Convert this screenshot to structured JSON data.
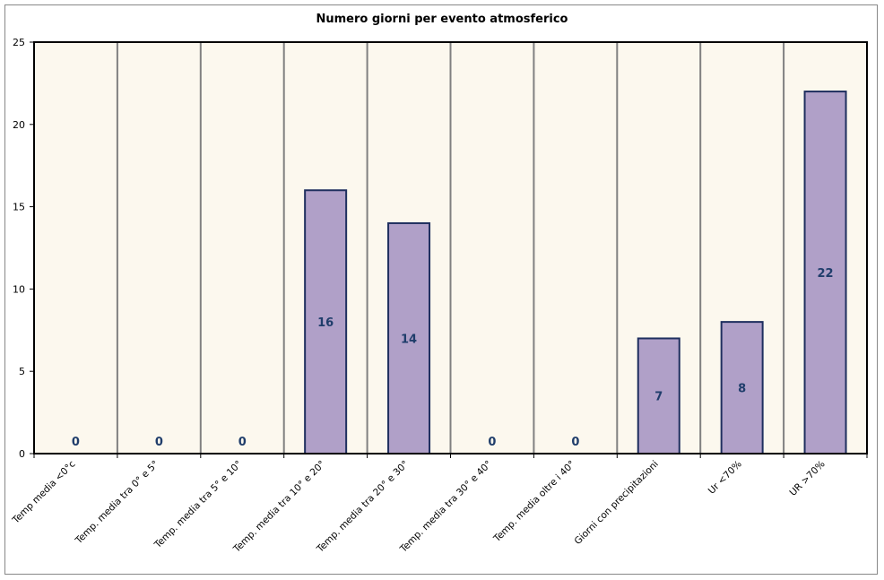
{
  "chart_data": {
    "type": "bar",
    "title": "Numero giorni per evento atmosferico",
    "xlabel": "",
    "ylabel": "",
    "ylim": [
      0,
      25
    ],
    "yticks": [
      0,
      5,
      10,
      15,
      20,
      25
    ],
    "categories": [
      "Temp media <0°c",
      "Temp. media tra 0° e 5°",
      "Temp. media tra 5° e 10°",
      "Temp. media tra 10° e 20°",
      "Temp. media tra 20° e 30°",
      "Temp. media tra 30° e 40°",
      "Temp. media oltre i 40°",
      "Giorni con precipitazioni",
      "Ur <70%",
      "UR >70%"
    ],
    "values": [
      0,
      0,
      0,
      16,
      14,
      0,
      0,
      7,
      8,
      22
    ],
    "data_labels": true,
    "grid": "vertical",
    "legend": "none",
    "colors": {
      "bar_fill": "#b0a0c8",
      "bar_stroke": "#1f2f5f",
      "plot_background": "#fcf8ee",
      "label_color": "#1f3d6b",
      "grid_color": "#808080"
    }
  }
}
